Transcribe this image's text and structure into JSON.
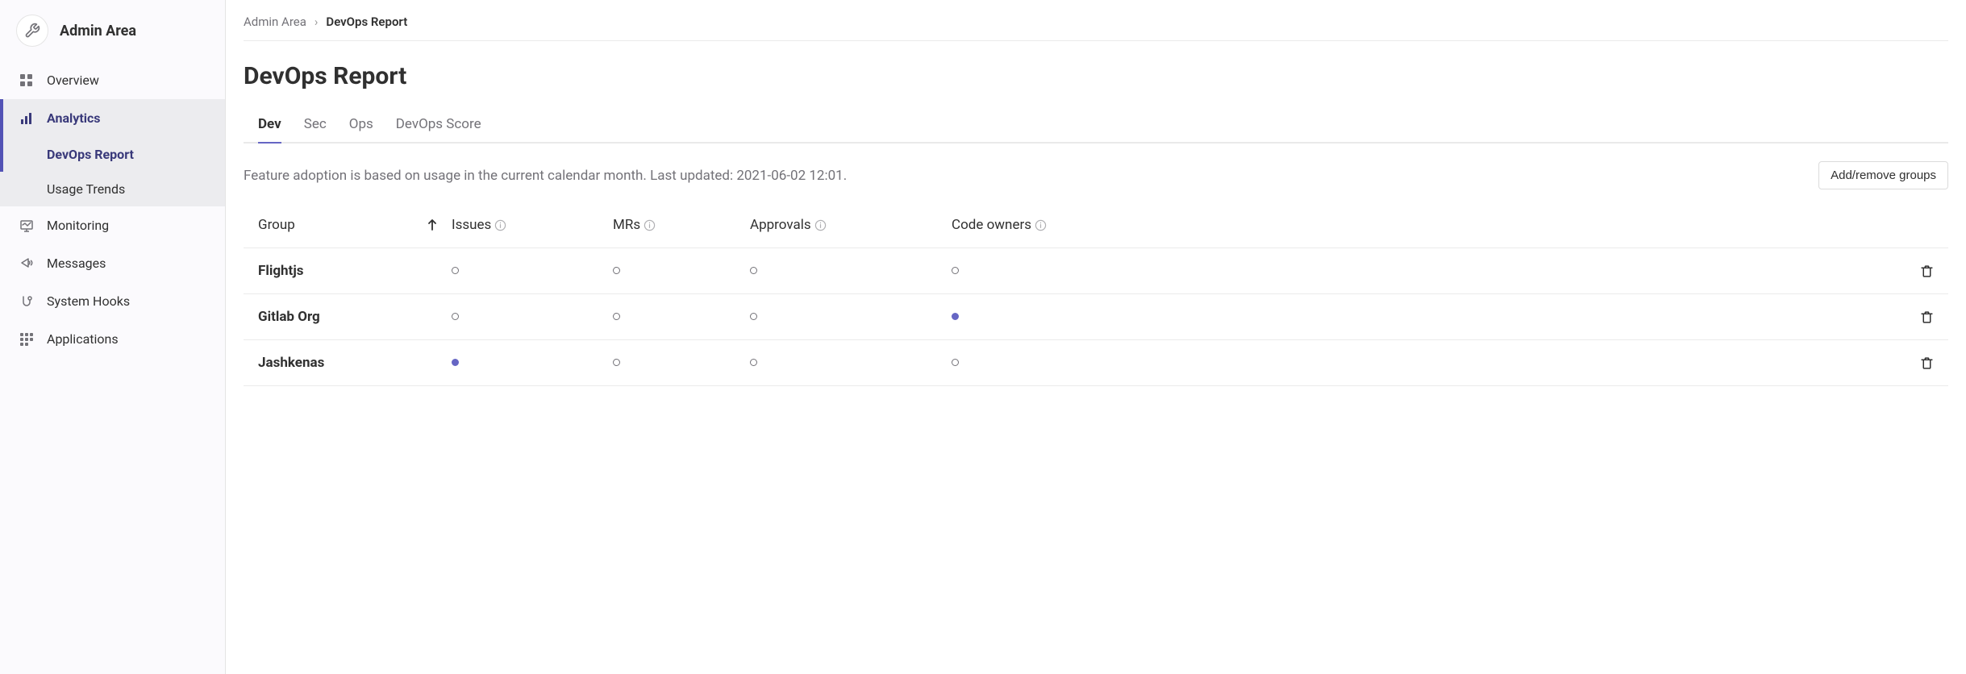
{
  "colors": {
    "accent": "#5252b5",
    "tab_active": "#6666c4",
    "text": "#303030",
    "muted": "#737278",
    "border": "#eaeaea",
    "sidebar_bg": "#fbfafd",
    "active_bg": "#ececef",
    "dot_filled": "#6666c4"
  },
  "sidebar": {
    "title": "Admin Area",
    "items": [
      {
        "label": "Overview",
        "icon": "overview"
      },
      {
        "label": "Analytics",
        "icon": "analytics",
        "active": true,
        "subitems": [
          {
            "label": "DevOps Report",
            "active": true
          },
          {
            "label": "Usage Trends"
          }
        ]
      },
      {
        "label": "Monitoring",
        "icon": "monitoring"
      },
      {
        "label": "Messages",
        "icon": "messages"
      },
      {
        "label": "System Hooks",
        "icon": "hooks"
      },
      {
        "label": "Applications",
        "icon": "applications"
      }
    ]
  },
  "breadcrumb": {
    "root": "Admin Area",
    "separator": "›",
    "current": "DevOps Report"
  },
  "page": {
    "title": "DevOps Report",
    "tabs": [
      {
        "label": "Dev",
        "active": true
      },
      {
        "label": "Sec"
      },
      {
        "label": "Ops"
      },
      {
        "label": "DevOps Score"
      }
    ],
    "subheader_text": "Feature adoption is based on usage in the current calendar month. Last updated: 2021-06-02 12:01.",
    "add_remove_button": "Add/remove groups"
  },
  "table": {
    "columns": {
      "group": "Group",
      "issues": "Issues",
      "mrs": "MRs",
      "approvals": "Approvals",
      "code_owners": "Code owners"
    },
    "rows": [
      {
        "group": "Flightjs",
        "issues": "empty",
        "mrs": "empty",
        "approvals": "empty",
        "code_owners": "empty"
      },
      {
        "group": "Gitlab Org",
        "issues": "empty",
        "mrs": "empty",
        "approvals": "empty",
        "code_owners": "filled"
      },
      {
        "group": "Jashkenas",
        "issues": "filled",
        "mrs": "empty",
        "approvals": "empty",
        "code_owners": "empty"
      }
    ]
  }
}
